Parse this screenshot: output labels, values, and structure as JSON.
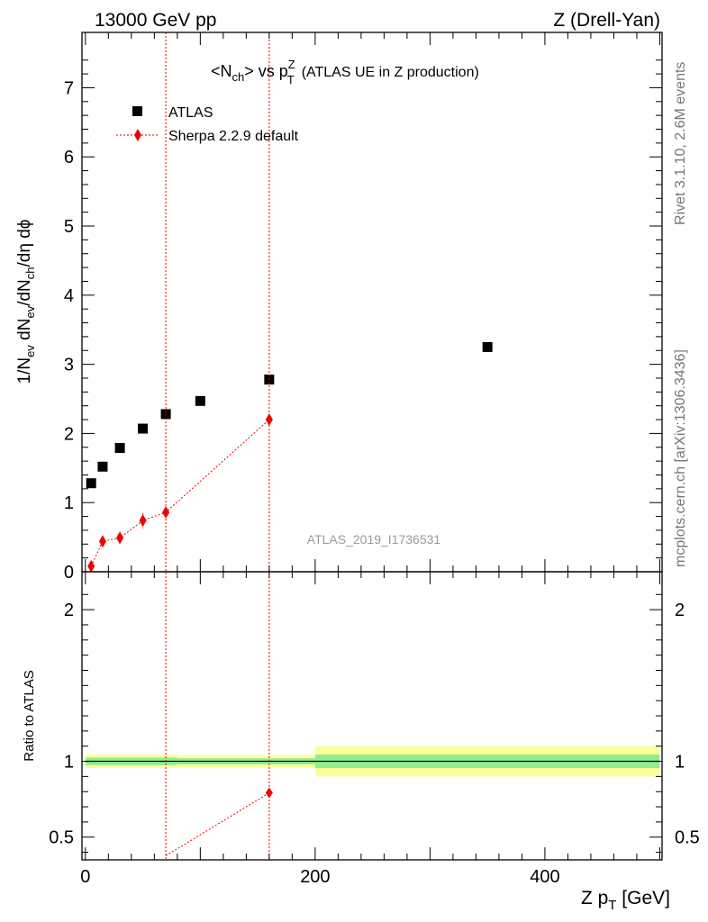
{
  "header": {
    "left": "13000 GeV pp",
    "right": "Z (Drell-Yan)"
  },
  "side": {
    "rivet": "Rivet 3.1.10,  2.6M events",
    "mcplots": "mcplots.cern.ch [arXiv:1306.3436]"
  },
  "watermark": "ATLAS_2019_I1736531",
  "colors": {
    "data": "#000000",
    "mc": "#ee0000",
    "band_inner": "#90ee90",
    "band_outer": "#ffff99"
  },
  "chart_data": [
    {
      "type": "scatter",
      "title": "<Nch> vs pTZ (ATLAS UE in Z production)",
      "title_parts": {
        "p1": "<N",
        "p2": "ch",
        "p3": "> vs p",
        "p4": "Z",
        "p5": "T",
        "p6": "(ATLAS UE in Z production)"
      },
      "ylabel_parts": {
        "a": "1/N",
        "b": "ev",
        "c": " dN",
        "d": "ev",
        "e": "/dN",
        "f": "ch",
        "g": "/dη dϕ"
      },
      "xlim": [
        -3,
        502
      ],
      "ylim": [
        0,
        7.8
      ],
      "yticks": [
        0,
        1,
        2,
        3,
        4,
        5,
        6,
        7
      ],
      "xticks": [
        0,
        200,
        400
      ],
      "vlines": [
        70,
        160
      ],
      "legend": {
        "position": "top-left",
        "entries": [
          "ATLAS",
          "Sherpa 2.2.9 default"
        ]
      },
      "series": [
        {
          "name": "ATLAS",
          "marker": "square",
          "x": [
            5,
            15,
            30,
            50,
            70,
            100,
            160,
            350
          ],
          "y": [
            1.28,
            1.52,
            1.79,
            2.07,
            2.28,
            2.47,
            2.78,
            3.25
          ]
        },
        {
          "name": "Sherpa 2.2.9 default",
          "marker": "diamond",
          "x": [
            5,
            15,
            30,
            50,
            70,
            160
          ],
          "y": [
            0.08,
            0.44,
            0.49,
            0.74,
            0.86,
            2.2
          ],
          "yerr": [
            0.03,
            0.06,
            0.09,
            0.11,
            0.05,
            0.05
          ]
        }
      ]
    },
    {
      "type": "line",
      "ylabel": "Ratio to ATLAS",
      "xlabel_parts": {
        "a": "Z p",
        "b": "T",
        "c": " [GeV]"
      },
      "xlim": [
        -3,
        502
      ],
      "ylim": [
        0.35,
        2.25
      ],
      "yticks": [
        0.5,
        1,
        2
      ],
      "ytick_labels": [
        "0.5",
        "1",
        "2"
      ],
      "xticks": [
        0,
        200,
        400
      ],
      "reference": 1,
      "bands": [
        {
          "x0": 0,
          "x1": 80,
          "inner": [
            0.975,
            1.025
          ],
          "outer": [
            0.955,
            1.045
          ]
        },
        {
          "x0": 80,
          "x1": 200,
          "inner": [
            0.98,
            1.02
          ],
          "outer": [
            0.96,
            1.04
          ]
        },
        {
          "x0": 200,
          "x1": 500,
          "inner": [
            0.955,
            1.045
          ],
          "outer": [
            0.9,
            1.1
          ]
        }
      ],
      "series": [
        {
          "name": "Sherpa 2.2.9 default",
          "x": [
            70,
            160
          ],
          "y": [
            0.377,
            0.792
          ],
          "visible_points": [
            false,
            true
          ]
        }
      ]
    }
  ]
}
